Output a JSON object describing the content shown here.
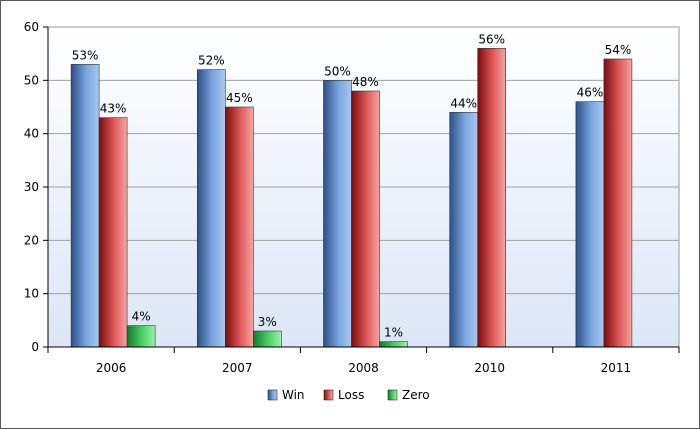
{
  "chart_data": {
    "type": "bar",
    "title": "",
    "xlabel": "",
    "ylabel": "",
    "categories": [
      "2006",
      "2007",
      "2008",
      "2010",
      "2011"
    ],
    "ylim": [
      0,
      60
    ],
    "yticks": [
      0,
      10,
      20,
      30,
      40,
      50,
      60
    ],
    "grid": true,
    "legend_position": "bottom",
    "series": [
      {
        "name": "Win",
        "values": [
          53,
          52,
          50,
          44,
          46
        ],
        "labels": [
          "53%",
          "52%",
          "50%",
          "44%",
          "46%"
        ],
        "color": "#4f7ec0"
      },
      {
        "name": "Loss",
        "values": [
          43,
          45,
          48,
          56,
          54
        ],
        "labels": [
          "43%",
          "45%",
          "48%",
          "56%",
          "54%"
        ],
        "color": "#c62a2a"
      },
      {
        "name": "Zero",
        "values": [
          4,
          3,
          1,
          null,
          null
        ],
        "labels": [
          "4%",
          "3%",
          "1%",
          "",
          ""
        ],
        "color": "#2fb54a"
      }
    ]
  }
}
